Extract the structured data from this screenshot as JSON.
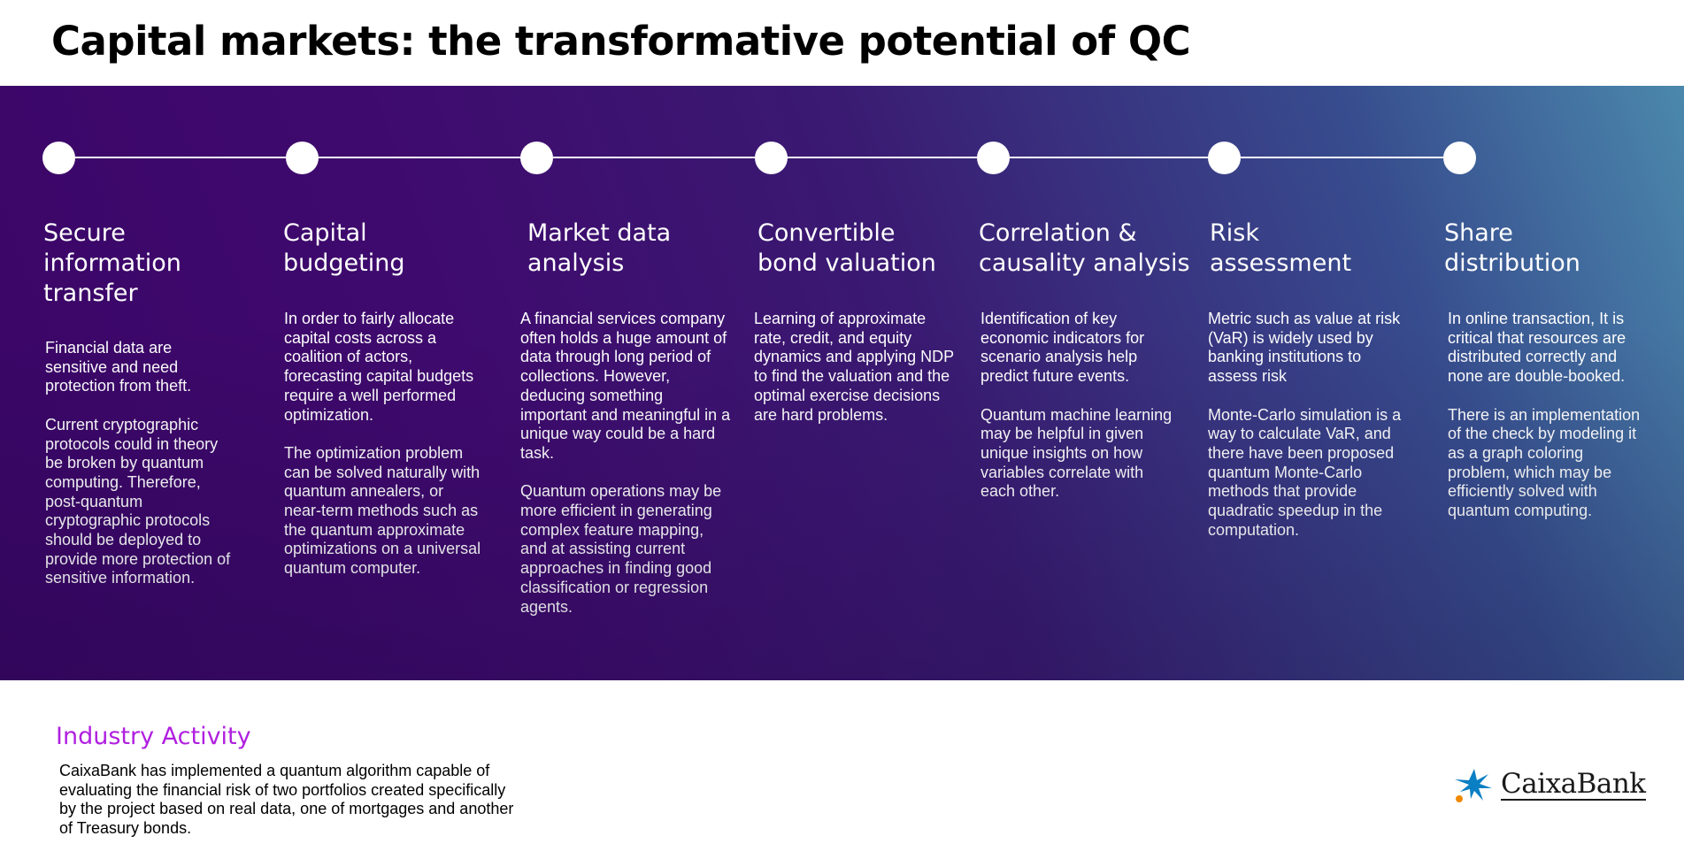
{
  "title": "Capital markets: the transformative potential of QC",
  "steps": [
    {
      "title": "Secure\ninformation\ntransfer",
      "paragraphs": [
        "Financial data are sensitive and need protection from theft.",
        "Current cryptographic protocols could in theory be broken by quantum computing. Therefore, post-quantum cryptographic protocols should be deployed to provide more protection of sensitive information."
      ]
    },
    {
      "title": "Capital\nbudgeting",
      "paragraphs": [
        "In order to fairly allocate capital costs across a coalition of actors, forecasting capital budgets require a well performed optimization.",
        "The optimization problem can be solved naturally with quantum annealers, or near-term methods such as the quantum approximate optimizations on a universal quantum computer."
      ]
    },
    {
      "title": "Market data\nanalysis",
      "paragraphs": [
        "A financial services company often holds a huge amount of data through long period of collections. However, deducing something important and meaningful in a unique way could be a hard task.",
        "Quantum operations may be more efficient in generating complex feature mapping, and at assisting current approaches in finding good classification or regression agents."
      ]
    },
    {
      "title": "Convertible\nbond valuation",
      "paragraphs": [
        "Learning of approximate rate, credit, and equity dynamics and applying NDP to find the valuation and the optimal exercise decisions are hard problems."
      ]
    },
    {
      "title": "Correlation &\ncausality analysis",
      "paragraphs": [
        "Identification of key economic indicators for scenario analysis help predict future events.",
        "Quantum machine learning may be helpful in given unique insights on how variables correlate with each other."
      ]
    },
    {
      "title": "Risk\nassessment",
      "paragraphs": [
        "Metric such as value at risk (VaR) is widely used by banking institutions to assess risk",
        "Monte-Carlo simulation is a way to calculate VaR, and there have been proposed quantum Monte-Carlo methods that provide quadratic speedup in the computation."
      ]
    },
    {
      "title": "Share\ndistribution",
      "paragraphs": [
        "In online transaction, It is critical that resources are distributed correctly and none are double-booked.",
        "There is an implementation of the check by modeling it as a graph coloring problem, which may be efficiently solved with quantum computing."
      ]
    }
  ],
  "industry": {
    "heading": "Industry Activity",
    "text": "CaixaBank has implemented a quantum algorithm capable of evaluating the financial risk of two portfolios created specifically by the project based on real data, one of mortgages and another of Treasury bonds."
  },
  "logo": {
    "text": "CaixaBank",
    "icon": "caixabank-star-icon",
    "colors": {
      "star": "#0a7fc4",
      "dot": "#f08a00"
    }
  },
  "colors": {
    "band_start": "#3a0566",
    "band_end": "#4b88ac",
    "industry_heading": "#b020e0"
  }
}
